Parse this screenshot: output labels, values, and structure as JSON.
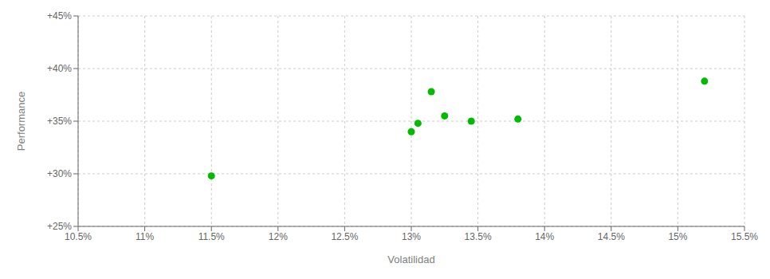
{
  "chart_data": {
    "type": "scatter",
    "x": [
      11.5,
      13.0,
      13.05,
      13.15,
      13.25,
      13.45,
      13.8,
      15.2
    ],
    "values": [
      29.8,
      34.0,
      34.8,
      37.8,
      35.5,
      35.0,
      35.2,
      38.8
    ],
    "color": "#00bb00",
    "xlabel": "Volatilidad",
    "ylabel": "Performance",
    "xlim": [
      10.5,
      15.5
    ],
    "ylim": [
      25.0,
      45.0
    ],
    "xticks": [
      {
        "value": 10.5,
        "label": "10.5%"
      },
      {
        "value": 11.0,
        "label": "11%"
      },
      {
        "value": 11.5,
        "label": "11.5%"
      },
      {
        "value": 12.0,
        "label": "12%"
      },
      {
        "value": 12.5,
        "label": "12.5%"
      },
      {
        "value": 13.0,
        "label": "13%"
      },
      {
        "value": 13.5,
        "label": "13.5%"
      },
      {
        "value": 14.0,
        "label": "14%"
      },
      {
        "value": 14.5,
        "label": "14.5%"
      },
      {
        "value": 15.0,
        "label": "15%"
      },
      {
        "value": 15.5,
        "label": "15.5%"
      }
    ],
    "yticks": [
      {
        "value": 25,
        "label": "+25%"
      },
      {
        "value": 30,
        "label": "+30%"
      },
      {
        "value": 35,
        "label": "+35%"
      },
      {
        "value": 40,
        "label": "+40%"
      },
      {
        "value": 45,
        "label": "+45%"
      }
    ],
    "grid": true
  }
}
